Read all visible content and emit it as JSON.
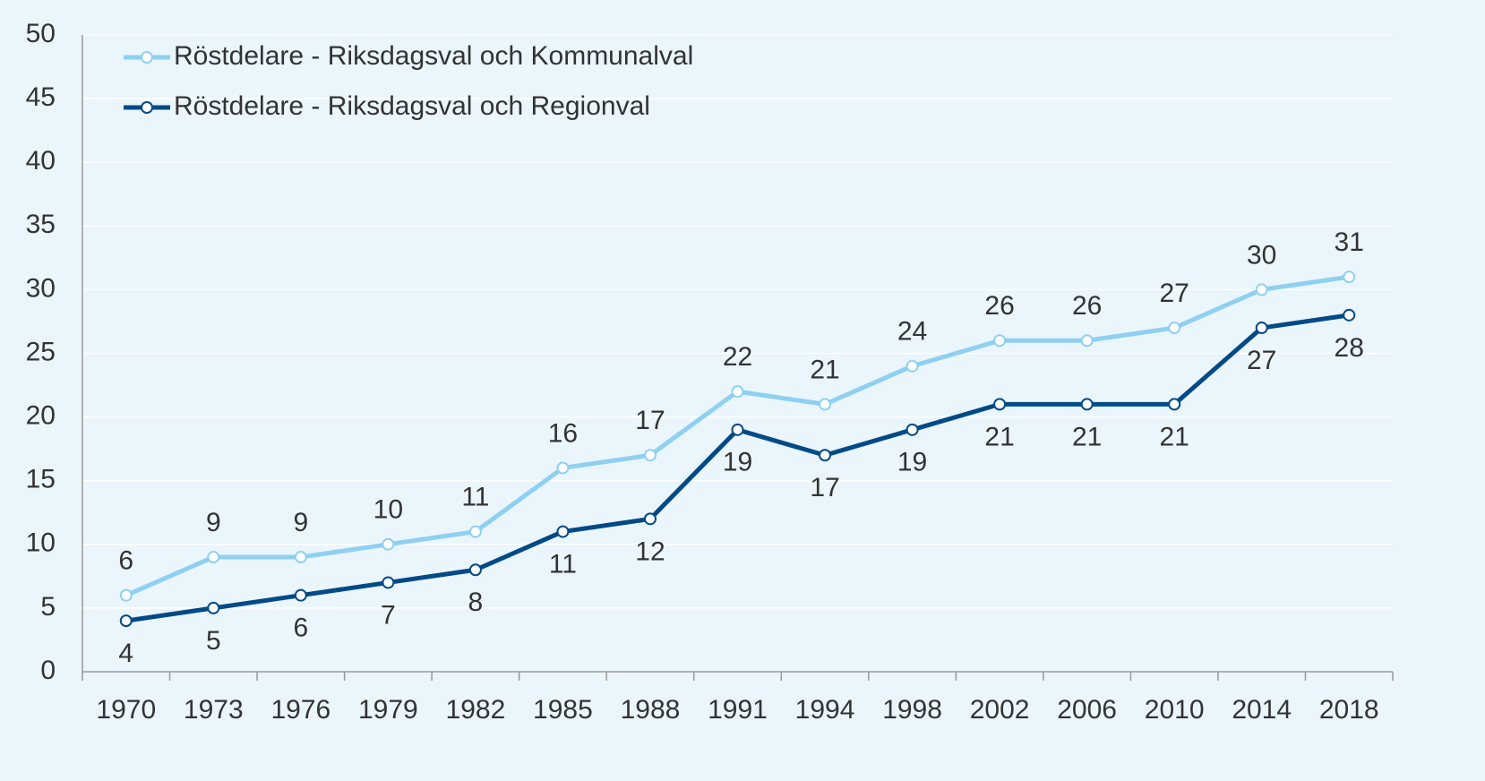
{
  "chart_data": {
    "type": "line",
    "categories": [
      "1970",
      "1973",
      "1976",
      "1979",
      "1982",
      "1985",
      "1988",
      "1991",
      "1994",
      "1998",
      "2002",
      "2006",
      "2010",
      "2014",
      "2018"
    ],
    "series": [
      {
        "name": "Röstdelare - Riksdagsval och Kommunalval",
        "color": "#8fd0f2",
        "values": [
          6,
          9,
          9,
          10,
          11,
          16,
          17,
          22,
          21,
          24,
          26,
          26,
          27,
          30,
          31
        ]
      },
      {
        "name": "Röstdelare - Riksdagsval och Regionval",
        "color": "#004a87",
        "values": [
          4,
          5,
          6,
          7,
          8,
          11,
          12,
          19,
          17,
          19,
          21,
          21,
          21,
          27,
          28
        ]
      }
    ],
    "ylim": [
      0,
      50
    ],
    "yticks": [
      0,
      5,
      10,
      15,
      20,
      25,
      30,
      35,
      40,
      45,
      50
    ],
    "grid": true,
    "legend": "top-left"
  }
}
